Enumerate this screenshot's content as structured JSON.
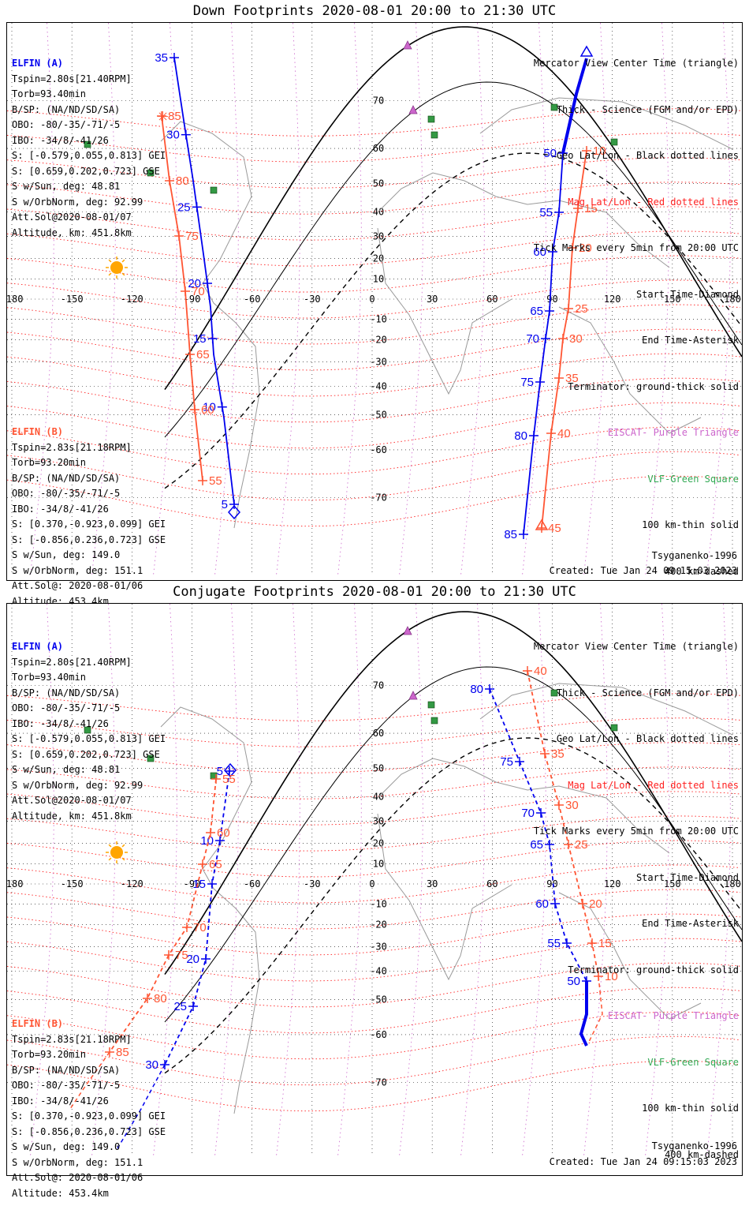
{
  "colors": {
    "sat_a": "#0000ee",
    "sat_b": "#ff5533",
    "mag_grid": "#ff2020",
    "geo_grid": "#000000",
    "purple": "#cc66cc",
    "green": "#339944",
    "sun": "#ffa500"
  },
  "panels": [
    {
      "title": "Down Footprints 2020-08-01 20:00 to 21:30 UTC",
      "lon_labels": [
        "-180",
        "-150",
        "-120",
        "-90",
        "-60",
        "-30",
        "0",
        "30",
        "60",
        "90",
        "120",
        "150",
        "180"
      ],
      "lat_labels": [
        "70",
        "60",
        "50",
        "40",
        "30",
        "20",
        "10",
        "0",
        "-10",
        "-20",
        "-30",
        "-40",
        "-50",
        "-60",
        "-70"
      ],
      "elfin_a": {
        "header": "ELFIN (A)",
        "lines": [
          "Tspin=2.80s[21.40RPM]",
          "Torb=93.40min",
          "B/SP: (NA/ND/SD/SA)",
          "OBO: -80/-35/-71/-5",
          "IBO: -34/8/-41/26",
          "S: [-0.579,0.055,0.813] GEI",
          "S: [0.659,0.202,0.723] GSE",
          "S w/Sun, deg: 48.81",
          "S w/OrbNorm, deg: 92.99",
          "Att.Sol@2020-08-01/07",
          "Altitude, km: 451.8km"
        ]
      },
      "elfin_b": {
        "header": "ELFIN (B)",
        "lines": [
          "Tspin=2.83s[21.18RPM]",
          "Torb=93.20min",
          "B/SP: (NA/ND/SD/SA)",
          "OBO: -80/-35/-71/-5",
          "IBO: -34/8/-41/26",
          "S: [0.370,-0.923,0.099] GEI",
          "S: [-0.856,0.236,0.723] GSE",
          "S w/Sun, deg: 149.0",
          "S w/OrbNorm, deg: 151.1",
          "Att.Sol@: 2020-08-01/06",
          "Altitude: 453.4km"
        ]
      },
      "legend": {
        "l1": "Mercator View Center Time (triangle)",
        "l2": "Thick - Science (FGM and/or EPD)",
        "l3": "Geo Lat/Lon - Black dotted lines",
        "l4": "Mag Lat/Lon - Red dotted lines",
        "l5": "Tick Marks every 5min from 20:00 UTC",
        "l6": "Start Time-Diamond",
        "l7": "End Time-Asterisk",
        "l8": "Terminator: ground-thick solid",
        "l9": "EISCAT- Purple Triangle",
        "l10": "VLF-Green Square",
        "l11": "100 km-thin solid",
        "l12": "400 km-dashed"
      },
      "credit": "Tsyganenko-1996",
      "created": "Created: Tue Jan 24 09:15:03 2023",
      "track_a_west_ticks": [
        [
          "35",
          35
        ],
        [
          "30",
          30
        ],
        [
          "25",
          25
        ],
        [
          "20",
          20
        ],
        [
          "15",
          15
        ],
        [
          "10",
          10
        ],
        [
          "5",
          5
        ]
      ],
      "track_b_west_ticks": [
        [
          "85",
          85
        ],
        [
          "80",
          80
        ],
        [
          "75",
          75
        ],
        [
          "70",
          70
        ],
        [
          "65",
          65
        ],
        [
          "60",
          60
        ],
        [
          "55",
          55
        ]
      ],
      "track_a_east_ticks": [
        [
          "50",
          50
        ],
        [
          "55",
          55
        ],
        [
          "60",
          60
        ],
        [
          "65",
          65
        ],
        [
          "70",
          70
        ],
        [
          "75",
          75
        ],
        [
          "80",
          80
        ],
        [
          "85",
          85
        ]
      ],
      "track_b_east_ticks": [
        [
          "10",
          10
        ],
        [
          "15",
          15
        ],
        [
          "20",
          20
        ],
        [
          "25",
          25
        ],
        [
          "30",
          30
        ],
        [
          "35",
          35
        ],
        [
          "40",
          40
        ],
        [
          "45",
          45
        ]
      ]
    },
    {
      "title": "Conjugate Footprints 2020-08-01 20:00 to 21:30 UTC",
      "lon_labels": [
        "-180",
        "-150",
        "-120",
        "-90",
        "-60",
        "-30",
        "0",
        "30",
        "60",
        "90",
        "120",
        "150",
        "180"
      ],
      "lat_labels": [
        "70",
        "60",
        "50",
        "40",
        "30",
        "20",
        "10",
        "0",
        "-10",
        "-20",
        "-30",
        "-40",
        "-50",
        "-60",
        "-70"
      ],
      "elfin_a": {
        "header": "ELFIN (A)",
        "lines": [
          "Tspin=2.80s[21.40RPM]",
          "Torb=93.40min",
          "B/SP: (NA/ND/SD/SA)",
          "OBO: -80/-35/-71/-5",
          "IBO: -34/8/-41/26",
          "S: [-0.579,0.055,0.813] GEI",
          "S: [0.659,0.202,0.723] GSE",
          "S w/Sun, deg: 48.81",
          "S w/OrbNorm, deg: 92.99",
          "Att.Sol@2020-08-01/07",
          "Altitude, km: 451.8km"
        ]
      },
      "elfin_b": {
        "header": "ELFIN (B)",
        "lines": [
          "Tspin=2.83s[21.18RPM]",
          "Torb=93.20min",
          "B/SP: (NA/ND/SD/SA)",
          "OBO: -80/-35/-71/-5",
          "IBO: -34/8/-41/26",
          "S: [0.370,-0.923,0.099] GEI",
          "S: [-0.856,0.236,0.723] GSE",
          "S w/Sun, deg: 149.0",
          "S w/OrbNorm, deg: 151.1",
          "Att.Sol@: 2020-08-01/06",
          "Altitude: 453.4km"
        ]
      },
      "legend": {
        "l1": "Mercator View Center Time (triangle)",
        "l2": "Thick - Science (FGM and/or EPD)",
        "l3": "Geo Lat/Lon - Black dotted lines",
        "l4": "Mag Lat/Lon - Red dotted lines",
        "l5": "Tick Marks every 5min from 20:00 UTC",
        "l6": "Start Time-Diamond",
        "l7": "End Time-Asterisk",
        "l8": "Terminator: ground-thick solid",
        "l9": "EISCAT- Purple Triangle",
        "l10": "VLF-Green Square",
        "l11": "100 km-thin solid",
        "l12": "400 km-dashed"
      },
      "credit": "Tsyganenko-1996",
      "created": "Created: Tue Jan 24 09:15:03 2023",
      "track_a_west_ticks": [
        [
          "5",
          5
        ],
        [
          "10",
          10
        ],
        [
          "15",
          15
        ],
        [
          "20",
          20
        ],
        [
          "25",
          25
        ],
        [
          "30",
          30
        ]
      ],
      "track_b_west_ticks": [
        [
          "55",
          55
        ],
        [
          "60",
          60
        ],
        [
          "65",
          65
        ],
        [
          "70",
          70
        ],
        [
          "75",
          75
        ],
        [
          "80",
          80
        ],
        [
          "85",
          85
        ]
      ],
      "track_a_east_ticks": [
        [
          "80",
          80
        ],
        [
          "75",
          75
        ],
        [
          "70",
          70
        ],
        [
          "65",
          65
        ],
        [
          "60",
          60
        ],
        [
          "55",
          55
        ],
        [
          "50",
          50
        ]
      ],
      "track_b_east_ticks": [
        [
          "40",
          40
        ],
        [
          "35",
          35
        ],
        [
          "30",
          30
        ],
        [
          "25",
          25
        ],
        [
          "20",
          20
        ],
        [
          "15",
          15
        ],
        [
          "10",
          10
        ]
      ]
    }
  ]
}
